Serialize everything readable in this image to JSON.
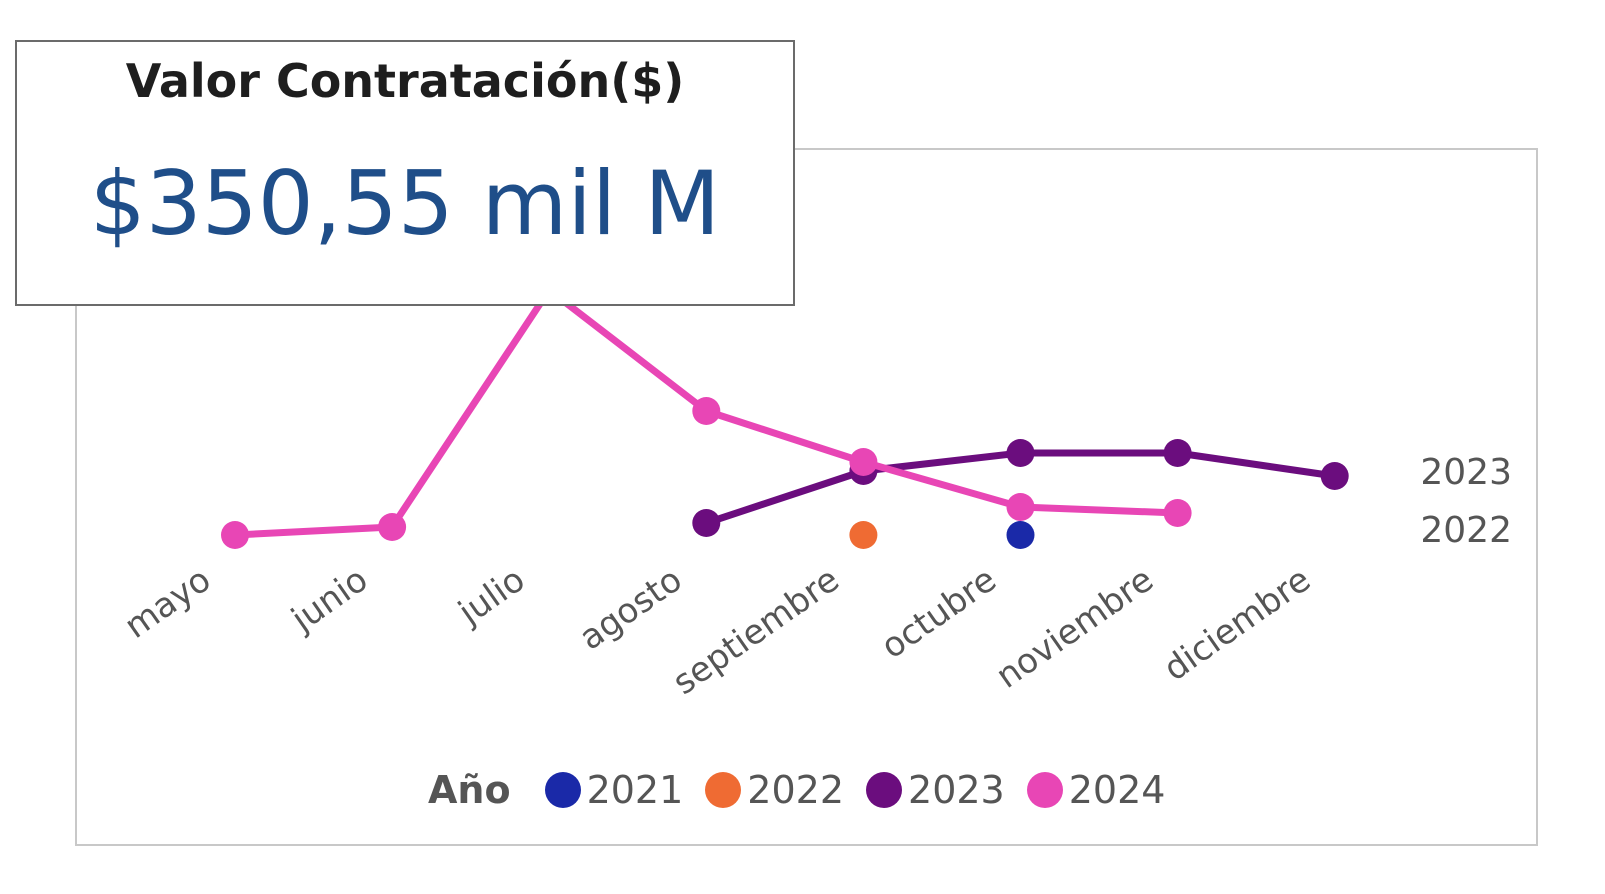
{
  "card": {
    "title": "Valor Contratación($)",
    "value": "$350,55 mil M"
  },
  "chart_data": {
    "type": "line",
    "title": "",
    "xlabel": "",
    "ylabel": "",
    "y_axis_visible": false,
    "ylim": [
      0,
      350
    ],
    "categories": [
      "mayo",
      "junio",
      "julio",
      "agosto",
      "septiembre",
      "octubre",
      "noviembre",
      "diciembre"
    ],
    "series": [
      {
        "name": "2021",
        "color": "#1a29a8",
        "values": [
          null,
          null,
          null,
          null,
          null,
          65,
          null,
          null
        ]
      },
      {
        "name": "2022",
        "color": "#ef6b33",
        "values": [
          null,
          null,
          null,
          null,
          65,
          null,
          null,
          null
        ]
      },
      {
        "name": "2023",
        "color": "#6b0d7e",
        "values": [
          null,
          null,
          null,
          77,
          129,
          147,
          147,
          124
        ]
      },
      {
        "name": "2024",
        "color": "#e846b5",
        "values": [
          65,
          73,
          310,
          189,
          138,
          93,
          87,
          null
        ]
      }
    ],
    "end_labels": [
      "2023",
      "2022"
    ],
    "legend": {
      "title": "Año",
      "position": "bottom",
      "items": [
        "2021",
        "2022",
        "2023",
        "2024"
      ]
    },
    "grid": false
  }
}
